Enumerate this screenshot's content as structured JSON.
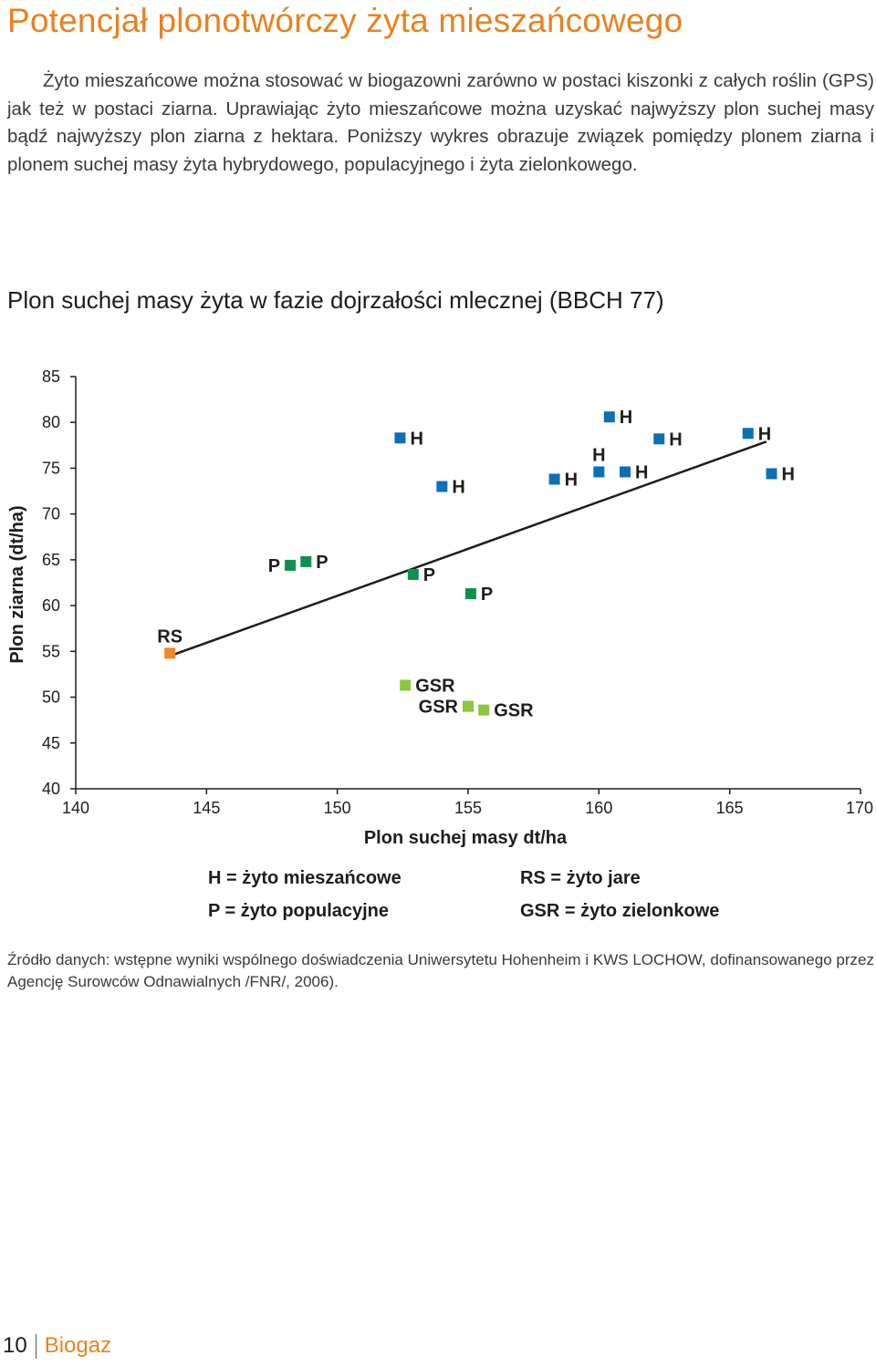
{
  "page": {
    "title": "Potencjał plonotwórczy żyta mieszańcowego",
    "intro": "Żyto mieszańcowe można stosować w biogazowni zarówno w postaci kiszonki z całych roślin (GPS) jak też w postaci ziarna. Uprawiając żyto mieszańcowe można uzyskać najwyższy plon suchej masy bądź najwyższy plon ziarna z hektara. Poniższy wykres obrazuje związek pomiędzy plonem ziarna i plonem suchej masy żyta hybrydowego, populacyjnego i żyta zielonkowego.",
    "chart_heading": "Plon suchej masy żyta w fazie dojrzałości mlecznej (BBCH 77)",
    "source": "Źródło danych: wstępne wyniki wspólnego doświadczenia Uniwersytetu Hohenheim i KWS LOCHOW, dofinansowanego przez Agencję Surowców Odnawialnych /FNR/, 2006).",
    "page_number": "10",
    "publication": "Biogaz"
  },
  "chart_data": {
    "type": "scatter",
    "title": "Plon suchej masy żyta w fazie dojrzałości mlecznej (BBCH 77)",
    "xlabel": "Plon suchej masy dt/ha",
    "ylabel": "Plon ziarna (dt/ha)",
    "xlim": [
      140,
      170
    ],
    "ylim": [
      40,
      85
    ],
    "xticks": [
      140,
      145,
      150,
      155,
      160,
      165,
      170
    ],
    "yticks": [
      40,
      45,
      50,
      55,
      60,
      65,
      70,
      75,
      80,
      85
    ],
    "grid": false,
    "legend": [
      {
        "code": "H",
        "text": "H = żyto mieszańcowe"
      },
      {
        "code": "RS",
        "text": "RS = żyto jare"
      },
      {
        "code": "P",
        "text": "P = żyto populacyjne"
      },
      {
        "code": "GSR",
        "text": "GSR = żyto zielonkowe"
      }
    ],
    "series_colors": {
      "H": "#0d6fb4",
      "P": "#0e9150",
      "RS": "#f0872a",
      "GSR": "#8cc63f"
    },
    "points": [
      {
        "group": "RS",
        "label": "RS",
        "x": 143.6,
        "y": 54.8,
        "anchor": "top"
      },
      {
        "group": "P",
        "label": "P",
        "x": 148.2,
        "y": 64.4,
        "anchor": "left"
      },
      {
        "group": "P",
        "label": "P",
        "x": 148.8,
        "y": 64.8,
        "anchor": "right"
      },
      {
        "group": "P",
        "label": "P",
        "x": 152.9,
        "y": 63.4,
        "anchor": "right"
      },
      {
        "group": "P",
        "label": "P",
        "x": 155.1,
        "y": 61.3,
        "anchor": "right"
      },
      {
        "group": "GSR",
        "label": "GSR",
        "x": 152.6,
        "y": 51.3,
        "anchor": "right"
      },
      {
        "group": "GSR",
        "label": "GSR",
        "x": 155.0,
        "y": 49.0,
        "anchor": "left"
      },
      {
        "group": "GSR",
        "label": "GSR",
        "x": 155.6,
        "y": 48.6,
        "anchor": "right"
      },
      {
        "group": "H",
        "label": "H",
        "x": 152.4,
        "y": 78.3,
        "anchor": "right"
      },
      {
        "group": "H",
        "label": "H",
        "x": 154.0,
        "y": 73.0,
        "anchor": "right"
      },
      {
        "group": "H",
        "label": "H",
        "x": 158.3,
        "y": 73.8,
        "anchor": "right"
      },
      {
        "group": "H",
        "label": "H",
        "x": 160.0,
        "y": 74.6,
        "anchor": "top"
      },
      {
        "group": "H",
        "label": "H",
        "x": 160.4,
        "y": 80.6,
        "anchor": "right"
      },
      {
        "group": "H",
        "label": "H",
        "x": 161.0,
        "y": 74.6,
        "anchor": "right"
      },
      {
        "group": "H",
        "label": "H",
        "x": 162.3,
        "y": 78.2,
        "anchor": "right"
      },
      {
        "group": "H",
        "label": "H",
        "x": 165.7,
        "y": 78.8,
        "anchor": "right"
      },
      {
        "group": "H",
        "label": "H",
        "x": 166.6,
        "y": 74.4,
        "anchor": "right"
      }
    ],
    "trendline": {
      "x": [
        143.6,
        166.4
      ],
      "y": [
        54.5,
        77.9
      ]
    }
  }
}
